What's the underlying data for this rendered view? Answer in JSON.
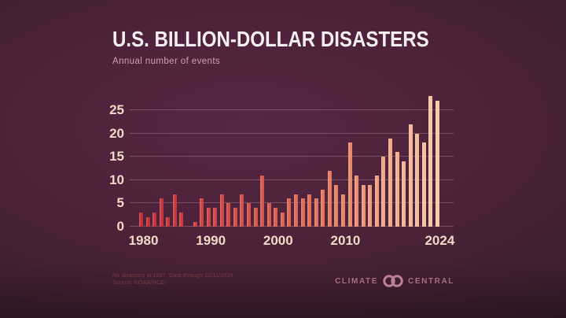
{
  "header": {
    "title": "U.S. BILLION-DOLLAR DISASTERS",
    "subtitle": "Annual number of events"
  },
  "footer": {
    "note_line1": "No disasters in 1987. Data through 12/11/2024.",
    "note_line2": "Source: NOAA/NCEI",
    "brand": {
      "left": "CLIMATE",
      "right": "CENTRAL"
    }
  },
  "chart_data": {
    "type": "bar",
    "title": "U.S. BILLION-DOLLAR DISASTERS",
    "subtitle": "Annual number of events",
    "xlabel": "",
    "ylabel": "Annual number of events",
    "x": [
      1980,
      1981,
      1982,
      1983,
      1984,
      1985,
      1986,
      1987,
      1988,
      1989,
      1990,
      1991,
      1992,
      1993,
      1994,
      1995,
      1996,
      1997,
      1998,
      1999,
      2000,
      2001,
      2002,
      2003,
      2004,
      2005,
      2006,
      2007,
      2008,
      2009,
      2010,
      2011,
      2012,
      2013,
      2014,
      2015,
      2016,
      2017,
      2018,
      2019,
      2020,
      2021,
      2022,
      2023,
      2024
    ],
    "values": [
      3,
      2,
      3,
      6,
      2,
      7,
      3,
      0,
      1,
      6,
      4,
      4,
      7,
      5,
      4,
      7,
      5,
      4,
      11,
      5,
      4,
      3,
      6,
      7,
      6,
      7,
      6,
      8,
      12,
      9,
      7,
      18,
      11,
      9,
      9,
      11,
      15,
      19,
      16,
      14,
      22,
      20,
      18,
      28,
      27
    ],
    "ylim": [
      0,
      28
    ],
    "yticks": [
      0,
      5,
      10,
      15,
      20,
      25
    ],
    "xtick_years": [
      1980,
      1990,
      2000,
      2010,
      2024
    ],
    "grid": true,
    "legend": false,
    "colors": {
      "bar_color_anchors": [
        [
          1980,
          "#c22d35"
        ],
        [
          1998,
          "#d5564a"
        ],
        [
          2008,
          "#e3795e"
        ],
        [
          2016,
          "#efa686"
        ],
        [
          2024,
          "#f7c9a7"
        ]
      ],
      "axis_text": "#f2d9c6",
      "gridline": "rgba(242,214,220,0.25)",
      "title_text": "#f6eff2",
      "subtitle_text": "#cfa2b0",
      "note_text": "#7d3a49",
      "brand_text": "#a76e7e",
      "brand_rings": "#bd7f95",
      "background_center": "#562643",
      "background_edge": "#2c1a28"
    }
  }
}
